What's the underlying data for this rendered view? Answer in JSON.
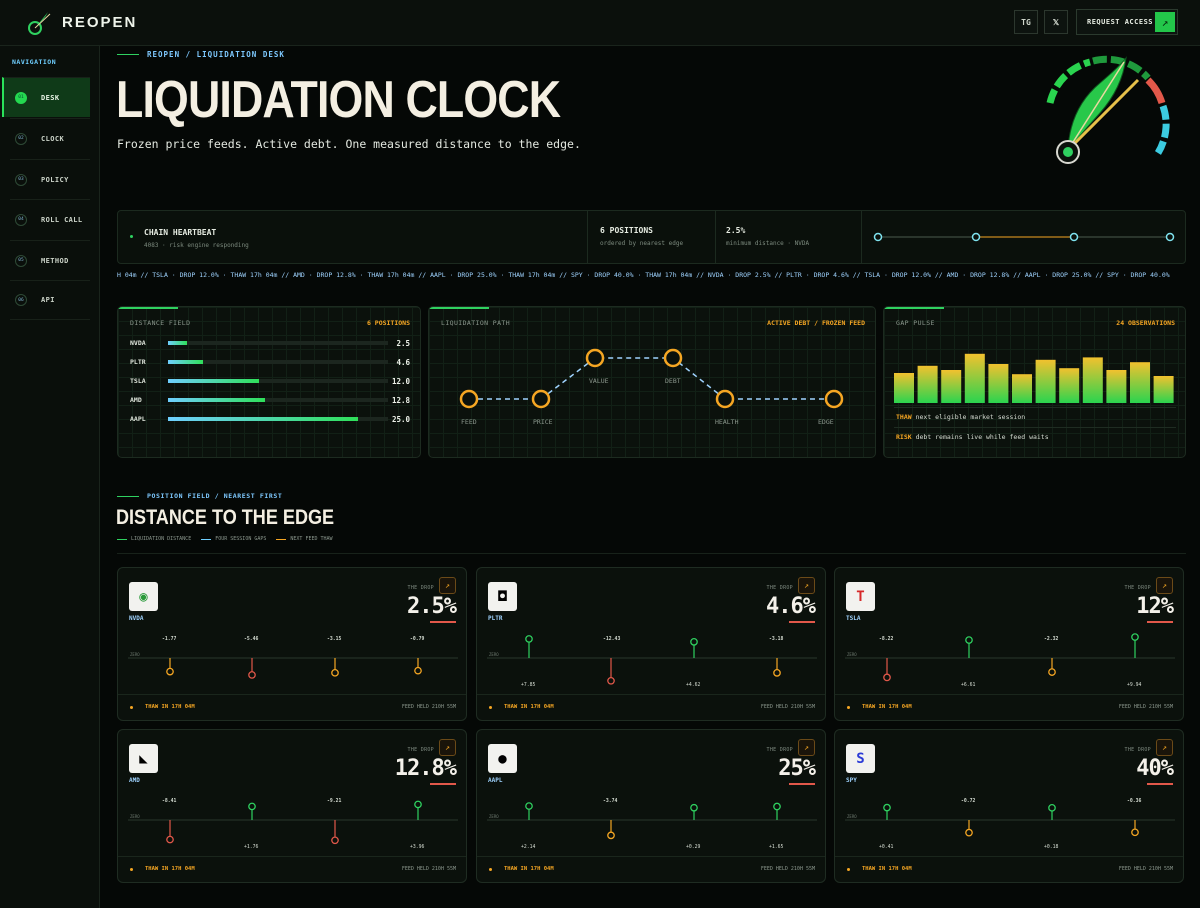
{
  "header": {
    "logo": "REOPEN",
    "tg_label": "TG",
    "x_label": "𝕏",
    "access_label": "REQUEST ACCESS",
    "access_arrow": "↗"
  },
  "sidebar": {
    "heading": "NAVIGATION",
    "items": [
      {
        "num": "01",
        "label": "DESK",
        "active": true
      },
      {
        "num": "02",
        "label": "CLOCK"
      },
      {
        "num": "03",
        "label": "POLICY"
      },
      {
        "num": "04",
        "label": "ROLL CALL"
      },
      {
        "num": "05",
        "label": "METHOD"
      },
      {
        "num": "06",
        "label": "API"
      }
    ]
  },
  "hero": {
    "breadcrumb": "REOPEN / LIQUIDATION DESK",
    "title": "LIQUIDATION CLOCK",
    "subtitle": "Frozen price feeds. Active debt. One measured distance to the edge."
  },
  "status": {
    "heartbeat_title": "CHAIN HEARTBEAT",
    "heartbeat_sub": "4083 · risk engine responding",
    "positions_title": "6 POSITIONS",
    "positions_sub": "ordered by nearest edge",
    "min_title": "2.5%",
    "min_sub": "minimum distance · NVDA"
  },
  "ticker": "H 04m  //  TSLA · DROP 12.0% · THAW 17h 04m  //  AMD · DROP 12.8% · THAW 17h 04m  //  AAPL · DROP 25.0% · THAW 17h 04m  //  SPY · DROP 40.0% · THAW 17h 04m  //  NVDA · DROP 2.5%  //  PLTR · DROP 4.6%  //  TSLA · DROP 12.0%  //  AMD · DROP 12.8%  //  AAPL · DROP 25.0%  //  SPY · DROP 40.0%",
  "distance_field": {
    "title": "DISTANCE FIELD",
    "count": "6 POSITIONS",
    "rows": [
      {
        "name": "NVDA",
        "value": "2.5",
        "frac": 0.1
      },
      {
        "name": "PLTR",
        "value": "4.6",
        "frac": 0.184
      },
      {
        "name": "TSLA",
        "value": "12.0",
        "frac": 0.48
      },
      {
        "name": "AMD",
        "value": "12.8",
        "frac": 0.512
      },
      {
        "name": "AAPL",
        "value": "25.0",
        "frac": 1.0
      }
    ]
  },
  "liquidation_path": {
    "title": "LIQUIDATION PATH",
    "tag": "ACTIVE DEBT / FROZEN FEED",
    "nodes": [
      "FEED",
      "PRICE",
      "VALUE",
      "DEBT",
      "HEALTH",
      "EDGE"
    ]
  },
  "gap_pulse": {
    "title": "GAP PULSE",
    "count": "24 OBSERVATIONS",
    "bars": [
      0.5,
      0.62,
      0.55,
      0.82,
      0.65,
      0.48,
      0.72,
      0.58,
      0.76,
      0.55,
      0.68,
      0.45
    ],
    "thaw_label": "THAW",
    "thaw_text": "next eligible market session",
    "risk_label": "RISK",
    "risk_text": "debt remains live while feed waits"
  },
  "section": {
    "breadcrumb": "POSITION FIELD / NEAREST FIRST",
    "title": "DISTANCE TO THE EDGE",
    "legend": [
      "LIQUIDATION DISTANCE",
      "FOUR SESSION GAPS",
      "NEXT FEED THAW"
    ]
  },
  "cards": [
    {
      "ticker": "NVDA",
      "icon": "◉",
      "drop_label": "THE DROP",
      "pct": "2.5%",
      "thaw": "THAW IN 17H 04M",
      "held": "FEED HELD 210H 55M",
      "gaps": [
        -1.77,
        -5.46,
        -3.15,
        -0.79
      ]
    },
    {
      "ticker": "PLTR",
      "icon": "◘",
      "drop_label": "THE DROP",
      "pct": "4.6%",
      "thaw": "THAW IN 17H 04M",
      "held": "FEED HELD 210H 55M",
      "gaps": [
        7.85,
        -12.43,
        4.62,
        -3.18
      ]
    },
    {
      "ticker": "TSLA",
      "icon": "T",
      "drop_label": "THE DROP",
      "pct": "12%",
      "thaw": "THAW IN 17H 04M",
      "held": "FEED HELD 210H 55M",
      "gaps": [
        -8.22,
        6.61,
        -2.32,
        9.94
      ]
    },
    {
      "ticker": "AMD",
      "icon": "◣",
      "drop_label": "THE DROP",
      "pct": "12.8%",
      "thaw": "THAW IN 17H 04M",
      "held": "FEED HELD 210H 55M",
      "gaps": [
        -8.41,
        1.76,
        -9.21,
        3.96
      ]
    },
    {
      "ticker": "AAPL",
      "icon": "●",
      "drop_label": "THE DROP",
      "pct": "25%",
      "thaw": "THAW IN 17H 04M",
      "held": "FEED HELD 210H 55M",
      "gaps": [
        2.14,
        -3.74,
        0.29,
        1.65
      ]
    },
    {
      "ticker": "SPY",
      "icon": "S",
      "drop_label": "THE DROP",
      "pct": "40%",
      "thaw": "THAW IN 17H 04M",
      "held": "FEED HELD 210H 55M",
      "gaps": [
        0.41,
        -0.72,
        0.18,
        -0.36
      ]
    }
  ],
  "zero_label": "ZERO",
  "colors": {
    "accent": "#2fd160",
    "warn": "#f5a623",
    "danger": "#e2584a",
    "info": "#6fcfff"
  }
}
